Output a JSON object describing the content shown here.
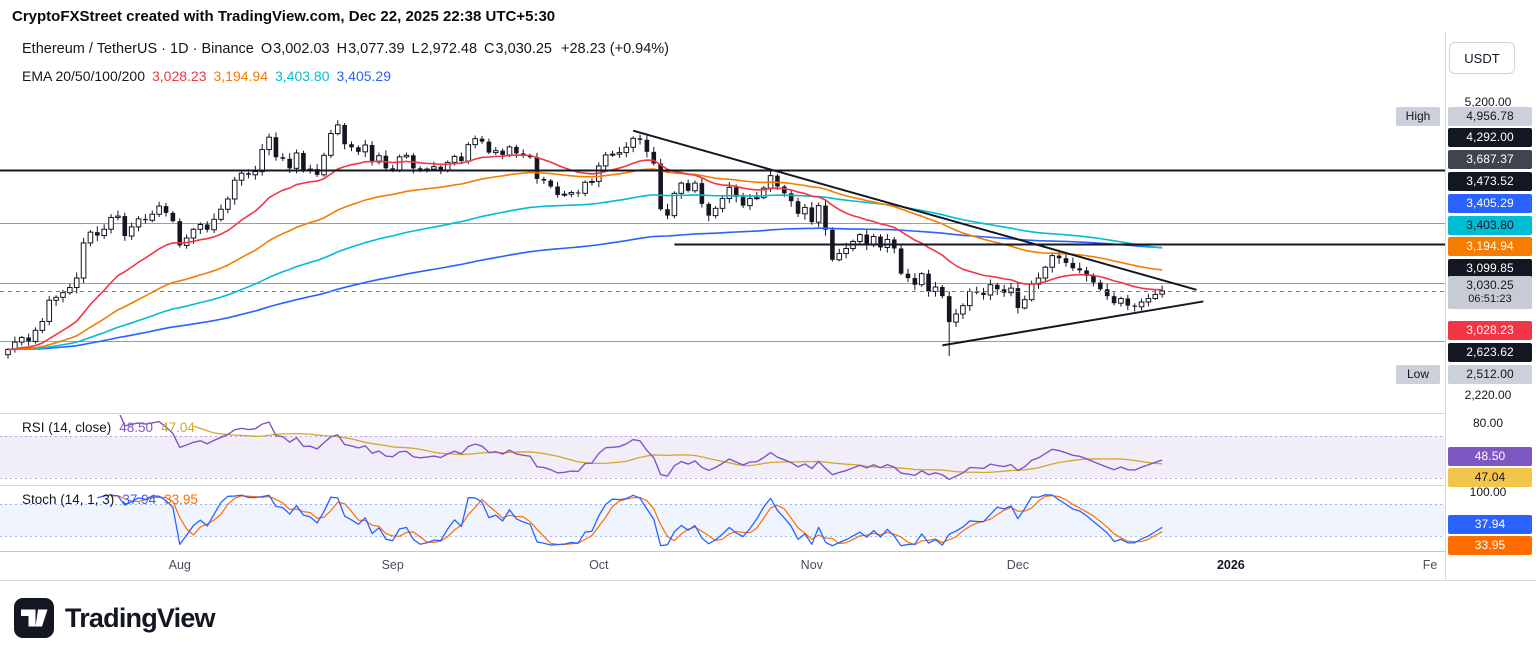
{
  "header": {
    "watermark": "CryptoFXStreet created with TradingView.com, Dec 22, 2025 22:38 UTC+5:30"
  },
  "legend": {
    "symbol_title": "Ethereum / TetherUS · 1D · Binance",
    "o_label": "O",
    "o": "3,002.03",
    "h_label": "H",
    "h": "3,077.39",
    "l_label": "L",
    "l": "2,972.48",
    "c_label": "C",
    "c": "3,030.25",
    "change": "+28.23 (+0.94%)",
    "ema_label": "EMA 20/50/100/200"
  },
  "toolbar": {
    "currency_button": "USDT"
  },
  "price_axis": {
    "badges": [
      {
        "text": "5,200.00",
        "kind": "tick",
        "partial": true
      },
      {
        "prefix": "High",
        "text": "4,956.78",
        "kind": "range-high",
        "bg": "#CBD0DA",
        "fg": "#131722"
      },
      {
        "text": "4,292.00",
        "kind": "level",
        "bg": "#131722",
        "fg": "#FFFFFF"
      },
      {
        "text": "3,687.37",
        "kind": "level",
        "bg": "#40444F",
        "fg": "#FFFFFF"
      },
      {
        "text": "3,473.52",
        "kind": "level",
        "bg": "#131722",
        "fg": "#FFFFFF"
      },
      {
        "text": "3,405.29",
        "kind": "ema-200",
        "bg": "#2962FF",
        "fg": "#FFFFFF"
      },
      {
        "text": "3,403.80",
        "kind": "ema-100",
        "bg": "#00BCD4",
        "fg": "#131722"
      },
      {
        "text": "3,194.94",
        "kind": "ema-50",
        "bg": "#F57C00",
        "fg": "#FFFFFF"
      },
      {
        "text": "3,099.85",
        "kind": "level",
        "bg": "#131722",
        "fg": "#FFFFFF"
      },
      {
        "text": "3,030.25",
        "sub": "06:51:23",
        "kind": "last-price",
        "bg": "#C6CBD4",
        "fg": "#131722"
      },
      {
        "text": "3,028.23",
        "kind": "ema-20",
        "bg": "#F23645",
        "fg": "#FFFFFF"
      },
      {
        "text": "2,623.62",
        "kind": "level",
        "bg": "#131722",
        "fg": "#FFFFFF"
      },
      {
        "prefix": "Low",
        "text": "2,512.00",
        "kind": "range-low",
        "bg": "#CBD0DA",
        "fg": "#131722"
      },
      {
        "text": "2,220.00",
        "kind": "tick"
      },
      {
        "text": "80.00",
        "kind": "tick"
      },
      {
        "text": "48.50",
        "kind": "rsi",
        "bg": "#7E57C2",
        "fg": "#FFFFFF"
      },
      {
        "text": "47.04",
        "kind": "rsi-ma",
        "bg": "#F2C54C",
        "fg": "#131722"
      },
      {
        "text": "100.00",
        "kind": "tick"
      },
      {
        "text": "37.94",
        "kind": "stoch-k",
        "bg": "#2962FF",
        "fg": "#FFFFFF"
      },
      {
        "text": "33.95",
        "kind": "stoch-d",
        "bg": "#FF6D00",
        "fg": "#FFFFFF"
      }
    ]
  },
  "time_axis": {
    "labels": [
      "Aug",
      "Sep",
      "Oct",
      "Nov",
      "Dec",
      "2026",
      "Fe"
    ]
  },
  "footer": {
    "brand": "TradingView"
  },
  "chart_data": {
    "type": "candlestick",
    "title": "Ethereum / TetherUS · 1D · Binance",
    "last_bar": {
      "open": 3002.03,
      "high": 3077.39,
      "low": 2972.48,
      "close": 3030.25,
      "change": "+28.23 (+0.94%)"
    },
    "visible_range": {
      "high": 4956.78,
      "low": 2512.0
    },
    "y_axis": {
      "scale": "log",
      "min": 2150,
      "max": 5300,
      "ticks_visible": [
        "5,200.00",
        "2,220.00"
      ]
    },
    "x_axis": {
      "visible_labels": [
        "Aug",
        "Sep",
        "Oct",
        "Nov",
        "Dec",
        "2026",
        "Fe"
      ]
    },
    "closes": [
      2560,
      2615,
      2650,
      2620,
      2705,
      2775,
      2950,
      2975,
      3015,
      3060,
      3145,
      3480,
      3590,
      3555,
      3620,
      3745,
      3760,
      3550,
      3645,
      3730,
      3715,
      3780,
      3870,
      3795,
      3705,
      3455,
      3530,
      3620,
      3670,
      3615,
      3725,
      3835,
      3950,
      4170,
      4255,
      4235,
      4275,
      4555,
      4720,
      4455,
      4435,
      4315,
      4510,
      4295,
      4305,
      4235,
      4480,
      4770,
      4890,
      4625,
      4585,
      4525,
      4615,
      4395,
      4475,
      4315,
      4295,
      4460,
      4480,
      4315,
      4285,
      4305,
      4335,
      4295,
      4390,
      4465,
      4405,
      4620,
      4700,
      4660,
      4515,
      4540,
      4485,
      4590,
      4505,
      4475,
      4455,
      4185,
      4165,
      4095,
      3995,
      4005,
      4025,
      4015,
      4145,
      4155,
      4345,
      4485,
      4495,
      4515,
      4585,
      4705,
      4685,
      4525,
      4375,
      3835,
      3765,
      4015,
      4135,
      4045,
      4135,
      3895,
      3765,
      3845,
      3955,
      4085,
      3975,
      3875,
      3955,
      3965,
      4075,
      4225,
      4095,
      4015,
      3925,
      3785,
      3855,
      3695,
      3875,
      3615,
      3315,
      3375,
      3425,
      3495,
      3565,
      3465,
      3545,
      3435,
      3515,
      3425,
      3185,
      3145,
      3085,
      3185,
      3025,
      3065,
      2985,
      2770,
      2835,
      2905,
      3025,
      3015,
      2995,
      3085,
      3045,
      3015,
      3055,
      2885,
      2955,
      3090,
      3145,
      3245,
      3355,
      3330,
      3285,
      3235,
      3215,
      3165,
      3105,
      3045,
      2985,
      2925,
      2965,
      2905,
      2895,
      2935,
      2965,
      3000,
      3030.25
    ],
    "overrides": {
      "48": {
        "high": 4956.78
      },
      "137": {
        "low": 2512.0
      },
      "168": {
        "open": 3002.03,
        "high": 3077.39,
        "low": 2972.48
      }
    },
    "emas": [
      {
        "period": 20,
        "last": "3,028.23",
        "color": "#F23645"
      },
      {
        "period": 50,
        "last": "3,194.94",
        "color": "#F57C00"
      },
      {
        "period": 100,
        "last": "3,403.80",
        "color": "#00BCD4"
      },
      {
        "period": 200,
        "last": "3,405.29",
        "color": "#2962FF"
      }
    ],
    "levels": [
      {
        "price": 4292.0,
        "style": "solid-thick"
      },
      {
        "price": 3687.37,
        "style": "solid-thin"
      },
      {
        "price": 3473.52,
        "style": "solid-thick",
        "from_day": 97
      },
      {
        "price": 3099.85,
        "style": "solid-thin"
      },
      {
        "price": 2623.62,
        "style": "solid-thin"
      }
    ],
    "trendlines": [
      {
        "from_day": 91,
        "from_price": 4810,
        "to_day": 173,
        "to_price": 3040
      },
      {
        "from_day": 136,
        "from_price": 2590,
        "to_day": 174,
        "to_price": 2940
      }
    ],
    "last_price_line": 3030.25,
    "indicators": {
      "rsi": {
        "label": "RSI (14, close)",
        "period": 14,
        "source": "close",
        "last_text": "48.50",
        "ma_text": "47.04",
        "band": [
          30,
          70
        ],
        "tick": "80.00",
        "colors": {
          "rsi": "#7E57C2",
          "ma": "#D4A72C"
        }
      },
      "stoch": {
        "label": "Stoch (14, 1, 3)",
        "params": [
          14,
          1,
          3
        ],
        "k_text": "37.94",
        "d_text": "33.95",
        "band": [
          20,
          80
        ],
        "tick": "100.00",
        "colors": {
          "k": "#2962FF",
          "d": "#FF6D00"
        }
      }
    }
  }
}
